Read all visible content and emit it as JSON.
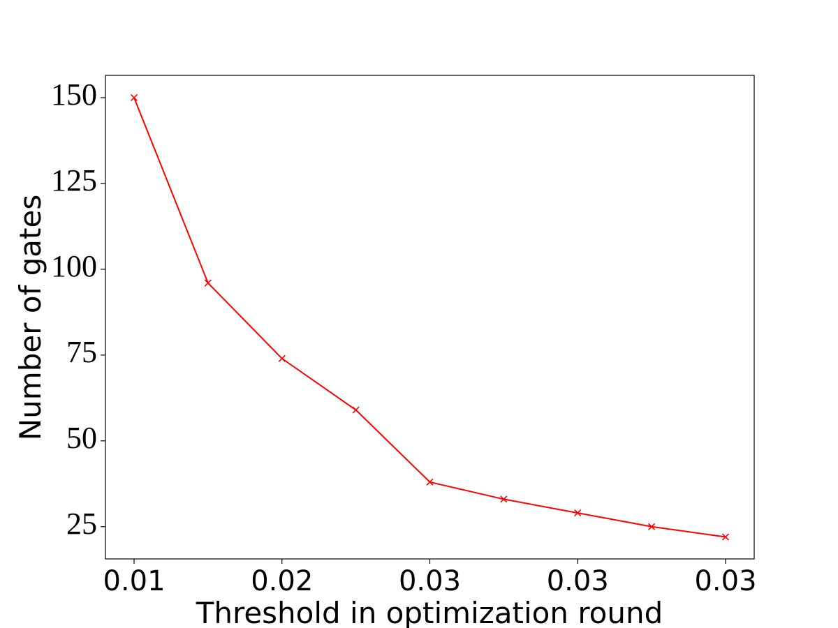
{
  "chart_data": {
    "type": "line",
    "x_label": "Threshold in optimization round",
    "y_label": "Number of gates",
    "categories": [
      "0.01",
      null,
      "0.02",
      null,
      "0.03",
      null,
      "0.03",
      null,
      "0.03"
    ],
    "values": [
      150,
      96,
      74,
      59,
      38,
      33,
      29,
      25,
      22
    ],
    "color": "#ff0000",
    "marker": "x",
    "ylim": [
      15.6,
      156.5
    ],
    "yticks": [
      25,
      50,
      75,
      100,
      125,
      150
    ],
    "grid": false
  }
}
